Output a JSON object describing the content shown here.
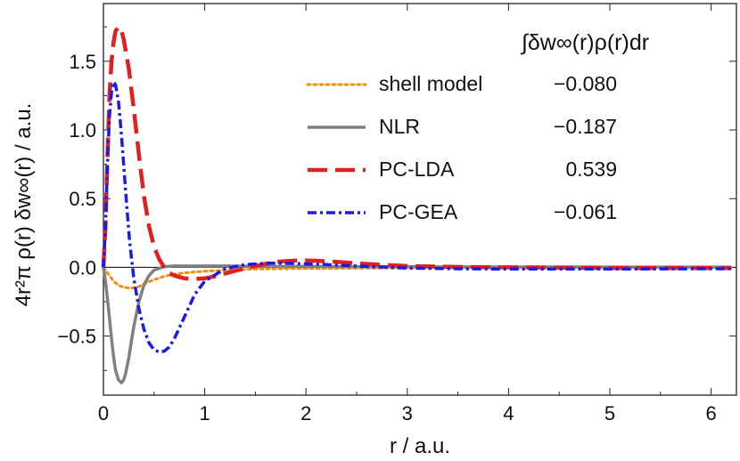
{
  "chart_data": {
    "type": "line",
    "xlabel": "r / a.u.",
    "ylabel": "4r²π ρ(r) δw∞(r) / a.u.",
    "xlim": [
      0,
      6.25
    ],
    "ylim": [
      -0.93,
      1.92
    ],
    "xticks": [
      0,
      1,
      2,
      3,
      4,
      5,
      6
    ],
    "xtick_labels": [
      "0",
      "1",
      "2",
      "3",
      "4",
      "5",
      "6"
    ],
    "yticks": [
      -0.5,
      0.0,
      0.5,
      1.0,
      1.5
    ],
    "ytick_labels": [
      "−0.5",
      "0.0",
      "0.5",
      "1.0",
      "1.5"
    ],
    "legend_title": "∫δw∞(r)ρ(r)dr",
    "legend_position": "top-right",
    "series": [
      {
        "name": "shell model",
        "value_label": "−0.080",
        "color": "#f0900e",
        "dash": "dotted",
        "x": [
          0,
          0.05,
          0.1,
          0.15,
          0.2,
          0.25,
          0.3,
          0.35,
          0.4,
          0.5,
          0.6,
          0.7,
          0.8,
          1.0,
          1.2,
          1.5,
          2.0,
          2.5,
          3.0,
          4.0,
          5.0,
          6.0,
          6.2
        ],
        "y": [
          0,
          -0.05,
          -0.1,
          -0.13,
          -0.145,
          -0.15,
          -0.148,
          -0.14,
          -0.12,
          -0.09,
          -0.065,
          -0.05,
          -0.04,
          -0.028,
          -0.02,
          -0.012,
          -0.008,
          -0.006,
          -0.005,
          -0.004,
          -0.003,
          -0.002,
          -0.002
        ]
      },
      {
        "name": "NLR",
        "value_label": "−0.187",
        "color": "#808080",
        "dash": "solid",
        "x": [
          0,
          0.02,
          0.05,
          0.08,
          0.1,
          0.12,
          0.15,
          0.18,
          0.2,
          0.22,
          0.25,
          0.28,
          0.3,
          0.35,
          0.4,
          0.45,
          0.5,
          0.6,
          0.7,
          0.8,
          0.9,
          1.0,
          1.2,
          1.5,
          2.0,
          2.5,
          3.0,
          4.0,
          5.0,
          6.0,
          6.2
        ],
        "y": [
          0,
          -0.1,
          -0.3,
          -0.52,
          -0.65,
          -0.75,
          -0.82,
          -0.84,
          -0.82,
          -0.77,
          -0.66,
          -0.52,
          -0.43,
          -0.25,
          -0.13,
          -0.06,
          -0.02,
          0.005,
          0.01,
          0.01,
          0.01,
          0.01,
          0.01,
          0.008,
          0.006,
          0.005,
          0.004,
          0.003,
          0.002,
          0.002,
          0.002
        ]
      },
      {
        "name": "PC-LDA",
        "value_label": "0.539",
        "color": "#e02020",
        "dash": "long-dash",
        "x": [
          0,
          0.02,
          0.04,
          0.06,
          0.08,
          0.1,
          0.12,
          0.15,
          0.18,
          0.2,
          0.25,
          0.3,
          0.35,
          0.4,
          0.45,
          0.5,
          0.55,
          0.6,
          0.65,
          0.7,
          0.8,
          0.9,
          1.0,
          1.1,
          1.2,
          1.3,
          1.5,
          1.7,
          1.9,
          2.0,
          2.1,
          2.3,
          2.5,
          2.7,
          3.0,
          3.5,
          4.0,
          5.0,
          6.0,
          6.2
        ],
        "y": [
          0,
          0.3,
          0.8,
          1.25,
          1.5,
          1.64,
          1.72,
          1.75,
          1.72,
          1.66,
          1.45,
          1.15,
          0.82,
          0.52,
          0.3,
          0.15,
          0.06,
          0.0,
          -0.04,
          -0.06,
          -0.08,
          -0.085,
          -0.08,
          -0.065,
          -0.045,
          -0.025,
          0.01,
          0.04,
          0.05,
          0.05,
          0.048,
          0.04,
          0.03,
          0.02,
          0.01,
          0.003,
          0.0,
          -0.005,
          -0.005,
          -0.005
        ]
      },
      {
        "name": "PC-GEA",
        "value_label": "−0.061",
        "color": "#1a1aee",
        "dash": "dash-dot",
        "x": [
          0,
          0.02,
          0.04,
          0.06,
          0.08,
          0.1,
          0.12,
          0.15,
          0.18,
          0.2,
          0.23,
          0.26,
          0.3,
          0.35,
          0.4,
          0.45,
          0.5,
          0.55,
          0.6,
          0.65,
          0.7,
          0.8,
          0.9,
          1.0,
          1.2,
          1.4,
          1.6,
          1.8,
          2.0,
          2.2,
          2.5,
          3.0,
          3.5,
          4.0,
          5.0,
          6.0,
          6.2
        ],
        "y": [
          0,
          0.3,
          0.75,
          1.1,
          1.28,
          1.35,
          1.33,
          1.2,
          0.95,
          0.75,
          0.45,
          0.18,
          -0.08,
          -0.3,
          -0.45,
          -0.55,
          -0.6,
          -0.615,
          -0.61,
          -0.58,
          -0.52,
          -0.36,
          -0.2,
          -0.1,
          -0.01,
          0.02,
          0.03,
          0.03,
          0.025,
          0.02,
          0.01,
          -0.005,
          -0.01,
          -0.012,
          -0.012,
          -0.01,
          -0.01
        ]
      }
    ]
  }
}
